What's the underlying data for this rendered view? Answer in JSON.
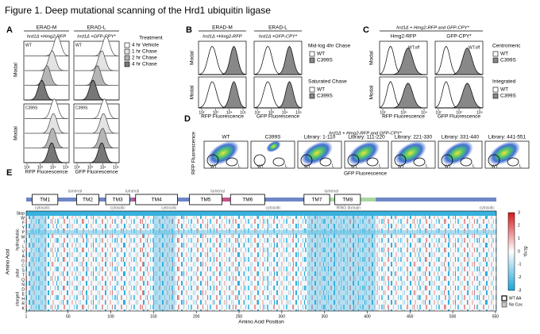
{
  "title": "Figure 1. Deep mutational scanning of the Hrd1 ubiquitin ligase",
  "panel_a": {
    "label": "A",
    "columns": [
      {
        "header": "ERAD-M",
        "subheader": "hrd1Δ +Hmg2-RFP",
        "x_label": "RFP Fluorescence"
      },
      {
        "header": "ERAD-L",
        "subheader": "hrd1Δ +GFP-CPY*",
        "x_label": "GFP Fluorescence"
      }
    ],
    "rows": [
      "WT",
      "C399S"
    ],
    "y_label": "Modal",
    "x_ticks": [
      "10²",
      "10³",
      "10⁴",
      "10⁵"
    ],
    "legend_title": "Treatment",
    "legend": [
      "4 hr Vehicle",
      "1 hr Chase",
      "2 hr Chase",
      "4 hr Chase"
    ]
  },
  "panel_b": {
    "label": "B",
    "columns": [
      {
        "header": "ERAD-M",
        "subheader": "hrd1Δ +Hmg2-RFP",
        "x_label": "RFP Fluorescence"
      },
      {
        "header": "ERAD-L",
        "subheader": "hrd1Δ +GFP-CPY*",
        "x_label": "GFP Fluorescence"
      }
    ],
    "y_label": "Modal",
    "x_ticks": [
      "10²",
      "10³",
      "10⁴",
      "10⁵"
    ],
    "rows": [
      {
        "title": "Mid-log 4hr Chase",
        "legend": [
          "WT",
          "C399S"
        ]
      },
      {
        "title": "Saturated Chase",
        "legend": [
          "WT",
          "C399S"
        ]
      }
    ]
  },
  "panel_c": {
    "label": "C",
    "title": "hrd1Δ + Hmg2-RFP and GFP-CPY*",
    "columns": [
      {
        "header": "Hmg2-RFP",
        "x_label": "RFP Fluorescence"
      },
      {
        "header": "GFP-CPY*",
        "x_label": "GFP Fluorescence"
      }
    ],
    "y_label": "Modal",
    "x_ticks": [
      "10²",
      "10³",
      "10⁴"
    ],
    "gate_labels": [
      "WT:off",
      "WT:off"
    ],
    "rows": [
      {
        "title": "Centromeric",
        "legend": [
          "WT",
          "C399S"
        ]
      },
      {
        "title": "Integrated",
        "legend": [
          "WT",
          "C399S"
        ]
      }
    ]
  },
  "panel_d": {
    "label": "D",
    "title": "hrd1Δ + Hmg2-RFP and GFP-CPY*",
    "plots": [
      "WT",
      "C399S",
      "Library: 1-110",
      "Library: 111-220",
      "Library: 221-330",
      "Library: 331-440",
      "Library: 441-551"
    ],
    "gates": [
      "WT",
      "L"
    ],
    "y_label": "RFP Fluorescence",
    "x_label": "GFP Fluorescence"
  },
  "panel_e": {
    "label": "E",
    "domains": [
      "TM1",
      "TM2",
      "TM3",
      "TM4",
      "TM5",
      "TM6",
      "TM7",
      "TM8"
    ],
    "topology": [
      "cytosolic",
      "lumenal",
      "cytosolic",
      "lumenal",
      "cytosolic",
      "lumenal",
      "cytosolic",
      "lumenal",
      "cytosolic"
    ],
    "ring": "RING domain",
    "rows": [
      "Stop",
      "W",
      "F",
      "Y",
      "P",
      "M",
      "I",
      "L",
      "V",
      "A",
      "G",
      "C",
      "S",
      "T",
      "Q",
      "N",
      "D",
      "E",
      "H",
      "R",
      "K"
    ],
    "groups": [
      "hydrophobic",
      "polar",
      "charged"
    ],
    "y_label": "Amino Acid",
    "x_label": "Amino Acid Position",
    "x_ticks": [
      1,
      50,
      100,
      150,
      200,
      250,
      300,
      350,
      400,
      450,
      500,
      550
    ],
    "colorbar_label": "ΔLog₂",
    "colorbar_ticks": [
      3,
      2,
      1,
      0,
      -1,
      -2,
      -3
    ],
    "legend": [
      "WT AA",
      "No Cov."
    ]
  }
}
